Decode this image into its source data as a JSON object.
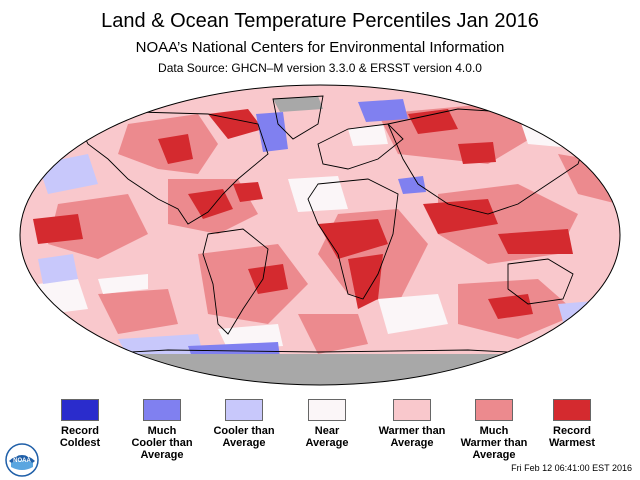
{
  "header": {
    "title": "Land & Ocean Temperature Percentiles Jan 2016",
    "subtitle": "NOAA’s National Centers for Environmental Information",
    "source": "Data Source: GHCN–M version 3.3.0 & ERSST version 4.0.0"
  },
  "legend": [
    {
      "line1": "Record",
      "line2": "Coldest",
      "line3": "",
      "color": "#2a2ccc"
    },
    {
      "line1": "Much",
      "line2": "Cooler than",
      "line3": "Average",
      "color": "#8080f0"
    },
    {
      "line1": "Cooler than",
      "line2": "Average",
      "line3": "",
      "color": "#c8c8fb"
    },
    {
      "line1": "Near",
      "line2": "Average",
      "line3": "",
      "color": "#fbf6f8"
    },
    {
      "line1": "Warmer than",
      "line2": "Average",
      "line3": "",
      "color": "#f9c8cc"
    },
    {
      "line1": "Much",
      "line2": "Warmer than",
      "line3": "Average",
      "color": "#ec8a8e"
    },
    {
      "line1": "Record",
      "line2": "Warmest",
      "line3": "",
      "color": "#d42a2f"
    }
  ],
  "colors": {
    "missing": "#a8a8a8",
    "land_outline": "#000000",
    "noaa_blue": "#1f5fa8"
  },
  "logo": {
    "icon": "noaa-logo-icon",
    "text": "NOAA"
  },
  "timestamp": "Fri Feb 12 06:41:00 EST 2016"
}
